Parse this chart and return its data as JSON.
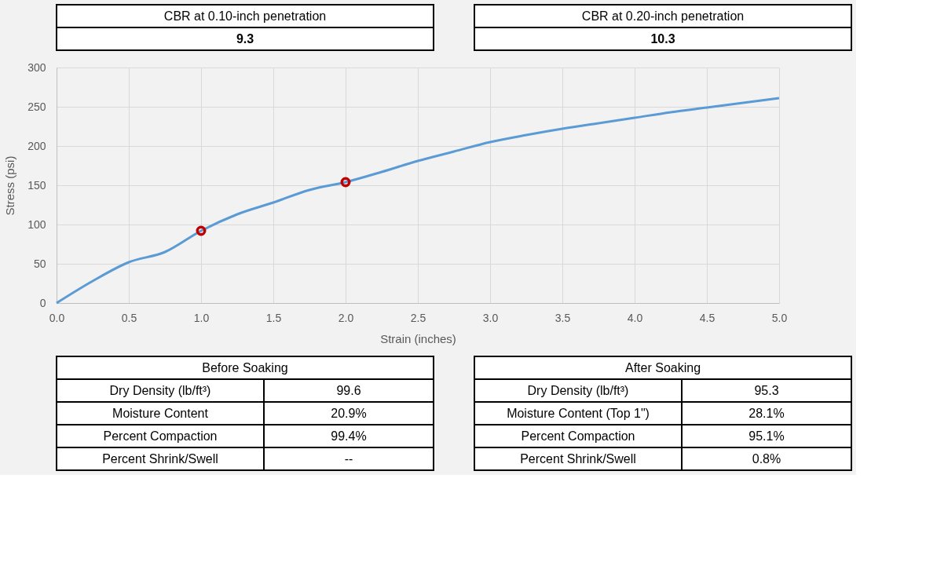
{
  "chart_data": [
    {
      "type": "other",
      "title": "CBR at 0.10-inch penetration",
      "annotations": [
        "9.3"
      ]
    },
    {
      "type": "other",
      "title": "CBR at 0.20-inch penetration",
      "annotations": [
        "10.3"
      ]
    },
    {
      "type": "line",
      "xlabel": "Strain (inches)",
      "ylabel": "Stress (psi)",
      "x": [
        0,
        0.25,
        0.5,
        0.75,
        1.0,
        1.25,
        1.5,
        1.75,
        2.0,
        2.25,
        2.5,
        2.75,
        3.0,
        3.25,
        3.5,
        3.75,
        4.0,
        4.25,
        4.5,
        4.75,
        5.0
      ],
      "series": [
        {
          "type": "line",
          "color": "#5b9bd5",
          "values": [
            0,
            28,
            52,
            65,
            92,
            113,
            128,
            144,
            154,
            167,
            181,
            193,
            205,
            214,
            222,
            229,
            236,
            243,
            249,
            255,
            261
          ]
        },
        {
          "type": "scatter",
          "marker": "circle",
          "color": "#c00000",
          "x": [
            1.0,
            2.0
          ],
          "values": [
            92,
            154
          ]
        }
      ],
      "xlim": [
        0,
        5
      ],
      "ylim": [
        0,
        300
      ],
      "xticks": [
        {
          "value": 0,
          "label": "0.0"
        },
        0.5,
        {
          "value": 1,
          "label": "1.0"
        },
        1.5,
        {
          "value": 2,
          "label": "2.0"
        },
        2.5,
        {
          "value": 3,
          "label": "3.0"
        },
        3.5,
        {
          "value": 4,
          "label": "4.0"
        },
        4.5,
        {
          "value": 5,
          "label": "5.0"
        }
      ],
      "yticks": [
        0,
        50,
        100,
        150,
        200,
        250,
        300
      ],
      "grid": true
    },
    {
      "type": "other",
      "title": "Before Soaking",
      "categories": [
        "Dry Density (lb/ft³)",
        "Moisture Content",
        "Percent Compaction",
        "Percent Shrink/Swell"
      ],
      "value_labels": [
        "99.6",
        "20.9%",
        "99.4%",
        "--"
      ]
    },
    {
      "type": "other",
      "title": "After Soaking",
      "categories": [
        "Dry Density (lb/ft³)",
        "Moisture Content (Top 1\")",
        "Percent Compaction",
        "Percent Shrink/Swell"
      ],
      "value_labels": [
        "95.3",
        "28.1%",
        "95.1%",
        "0.8%"
      ]
    }
  ]
}
